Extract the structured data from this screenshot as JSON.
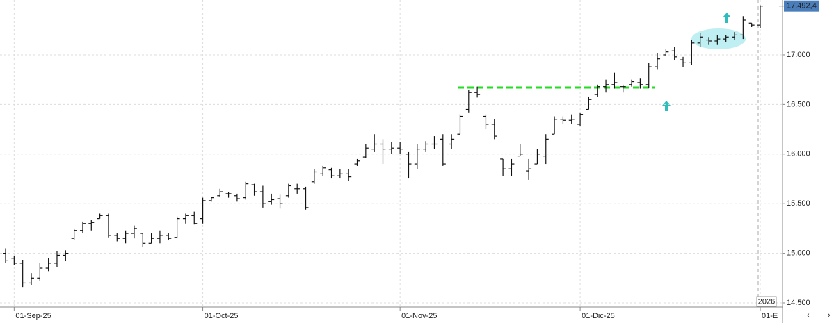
{
  "chart_data": {
    "type": "ohlc",
    "color": "#111111",
    "categories": [
      null,
      "01-Sep-25",
      null,
      null,
      null,
      null,
      null,
      null,
      null,
      null,
      null,
      null,
      null,
      null,
      null,
      null,
      null,
      null,
      null,
      null,
      null,
      null,
      null,
      "01-Oct-25",
      null,
      null,
      null,
      null,
      null,
      null,
      null,
      null,
      null,
      null,
      null,
      null,
      null,
      null,
      null,
      null,
      null,
      null,
      null,
      null,
      null,
      null,
      "01-Nov-25",
      null,
      null,
      null,
      null,
      null,
      null,
      null,
      null,
      null,
      null,
      null,
      null,
      null,
      null,
      null,
      null,
      null,
      null,
      null,
      null,
      "01-Dic-25",
      null,
      null,
      null,
      null,
      null,
      null,
      null,
      null,
      null,
      null,
      null,
      null,
      null,
      null,
      null,
      null,
      null,
      null,
      null,
      null,
      "01-E"
    ],
    "open": [
      15000,
      14950,
      14900,
      14700,
      14750,
      14850,
      14900,
      14980,
      15150,
      15230,
      15300,
      15350,
      15380,
      15180,
      15150,
      15200,
      15200,
      15100,
      15150,
      15180,
      15160,
      15350,
      15380,
      15350,
      15530,
      15580,
      15600,
      15580,
      15560,
      15690,
      15620,
      15520,
      15550,
      15580,
      15650,
      15650,
      15720,
      15800,
      15840,
      15780,
      15800,
      15900,
      15970,
      16050,
      16100,
      16050,
      16060,
      16000,
      15900,
      16050,
      16100,
      16150,
      16100,
      16200,
      16450,
      16620,
      16380,
      16300,
      15950,
      15850,
      15980,
      15830,
      15900,
      15980,
      16200,
      16350,
      16340,
      16300,
      16450,
      16600,
      16680,
      16700,
      16680,
      16700,
      16720,
      16700,
      16880,
      17000,
      17040,
      16950,
      16920,
      17120,
      17150,
      17140,
      17160,
      17180,
      17200,
      17320,
      17300
    ],
    "high": [
      15050,
      14970,
      14930,
      14800,
      14900,
      14950,
      15020,
      15030,
      15250,
      15320,
      15340,
      15400,
      15400,
      15200,
      15230,
      15280,
      15200,
      15200,
      15230,
      15200,
      15370,
      15400,
      15420,
      15560,
      15570,
      15650,
      15620,
      15600,
      15720,
      15700,
      15680,
      15600,
      15590,
      15700,
      15700,
      15670,
      15850,
      15880,
      15860,
      15850,
      15850,
      15950,
      16100,
      16200,
      16150,
      16120,
      16120,
      16020,
      16100,
      16130,
      16180,
      16200,
      16200,
      16400,
      16650,
      16680,
      16400,
      16350,
      15950,
      15950,
      16100,
      15950,
      16050,
      16200,
      16380,
      16380,
      16400,
      16420,
      16580,
      16700,
      16750,
      16820,
      16700,
      16750,
      16760,
      16920,
      17020,
      17060,
      17080,
      16980,
      17150,
      17220,
      17180,
      17200,
      17200,
      17230,
      17390,
      17320,
      17500
    ],
    "low": [
      14900,
      14880,
      14660,
      14680,
      14720,
      14820,
      14860,
      14920,
      15130,
      15200,
      15230,
      15350,
      15160,
      15120,
      15100,
      15150,
      15060,
      15100,
      15100,
      15130,
      15150,
      15300,
      15290,
      15300,
      15520,
      15570,
      15560,
      15520,
      15540,
      15580,
      15460,
      15490,
      15450,
      15560,
      15600,
      15440,
      15700,
      15780,
      15760,
      15760,
      15730,
      15880,
      15960,
      16020,
      15900,
      16000,
      16000,
      15760,
      15850,
      16020,
      16050,
      15880,
      16050,
      16200,
      16420,
      16570,
      16250,
      16150,
      15780,
      15780,
      15980,
      15740,
      15900,
      15900,
      16200,
      16300,
      16300,
      16280,
      16450,
      16580,
      16620,
      16660,
      16620,
      16680,
      16660,
      16670,
      16850,
      16990,
      16950,
      16880,
      16900,
      17080,
      17100,
      17100,
      17130,
      17150,
      17160,
      17280,
      17270
    ],
    "close": [
      14930,
      14900,
      14700,
      14750,
      14850,
      14900,
      14980,
      15000,
      15230,
      15300,
      15310,
      15380,
      15180,
      15150,
      15200,
      15250,
      15100,
      15150,
      15180,
      15150,
      15350,
      15380,
      15300,
      15530,
      15560,
      15620,
      15600,
      15550,
      15700,
      15620,
      15500,
      15540,
      15500,
      15680,
      15650,
      15460,
      15820,
      15860,
      15780,
      15800,
      15770,
      15930,
      16060,
      16100,
      16050,
      16060,
      16050,
      15900,
      16050,
      16100,
      16100,
      15900,
      16150,
      16380,
      16620,
      16600,
      16300,
      16180,
      15850,
      15900,
      16000,
      15850,
      16000,
      16150,
      16350,
      16340,
      16350,
      16400,
      16550,
      16680,
      16700,
      16720,
      16680,
      16730,
      16700,
      16880,
      16960,
      17030,
      16980,
      16920,
      17120,
      17180,
      17140,
      17160,
      17180,
      17200,
      17350,
      17300,
      17492.4
    ],
    "last_label": "17.492,4",
    "year_label": "2026",
    "ylim": [
      14458,
      17553
    ],
    "yticks": [
      {
        "value": 14500,
        "label": "14.500"
      },
      {
        "value": 15000,
        "label": "15.000"
      },
      {
        "value": 15500,
        "label": "15.500"
      },
      {
        "value": 16000,
        "label": "16.000"
      },
      {
        "value": 16500,
        "label": "16.500"
      },
      {
        "value": 17000,
        "label": "17.000"
      }
    ],
    "grid": true
  }
}
